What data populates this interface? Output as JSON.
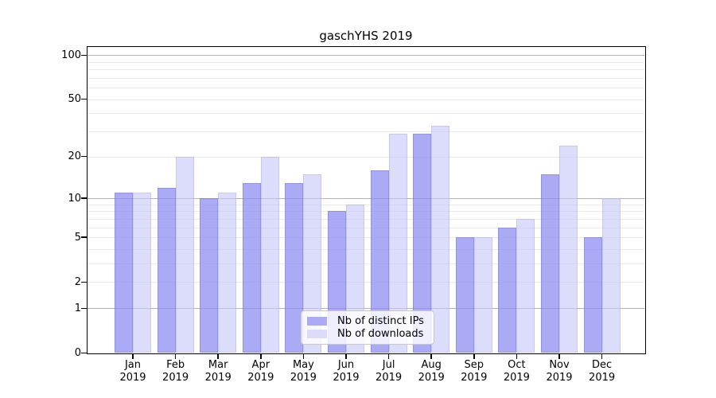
{
  "chart_data": {
    "type": "bar",
    "title": "gaschYHS 2019",
    "y_scale": "log1p",
    "grid": "on",
    "legend_position": "bottom-center",
    "background_color": "#ffffff",
    "axis_color": "#000000",
    "categories": [
      {
        "month": "Jan",
        "year": "2019"
      },
      {
        "month": "Feb",
        "year": "2019"
      },
      {
        "month": "Mar",
        "year": "2019"
      },
      {
        "month": "Apr",
        "year": "2019"
      },
      {
        "month": "May",
        "year": "2019"
      },
      {
        "month": "Jun",
        "year": "2019"
      },
      {
        "month": "Jul",
        "year": "2019"
      },
      {
        "month": "Aug",
        "year": "2019"
      },
      {
        "month": "Sep",
        "year": "2019"
      },
      {
        "month": "Oct",
        "year": "2019"
      },
      {
        "month": "Nov",
        "year": "2019"
      },
      {
        "month": "Dec",
        "year": "2019"
      }
    ],
    "series": [
      {
        "name": "Nb of distinct IPs",
        "swatch_color": "#aaaaf5",
        "fill_rgba": "rgba(140,140,242,0.74)",
        "edge_rgba": "rgba(95,95,195,0.30)",
        "values": [
          11,
          12,
          10,
          13,
          13,
          8,
          16,
          29,
          5,
          6,
          15,
          5
        ]
      },
      {
        "name": "Nb of downloads",
        "swatch_color": "#dbdbfa",
        "fill_rgba": "rgba(198,198,248,0.62)",
        "edge_rgba": "rgba(135,135,215,0.25)",
        "values": [
          11,
          20,
          11,
          20,
          15,
          9,
          29,
          33,
          5,
          7,
          24,
          10
        ]
      }
    ],
    "y_ticks": [
      0,
      1,
      2,
      5,
      10,
      20,
      50,
      100
    ],
    "y_grid_major_lines": [
      1,
      10,
      100
    ],
    "y_grid_minor_lines": [
      2,
      3,
      4,
      5,
      6,
      7,
      8,
      9,
      20,
      30,
      40,
      50,
      60,
      70,
      80,
      90
    ],
    "grid_major_color": "#b3b3b3",
    "grid_minor_color": "#ebebeb"
  }
}
